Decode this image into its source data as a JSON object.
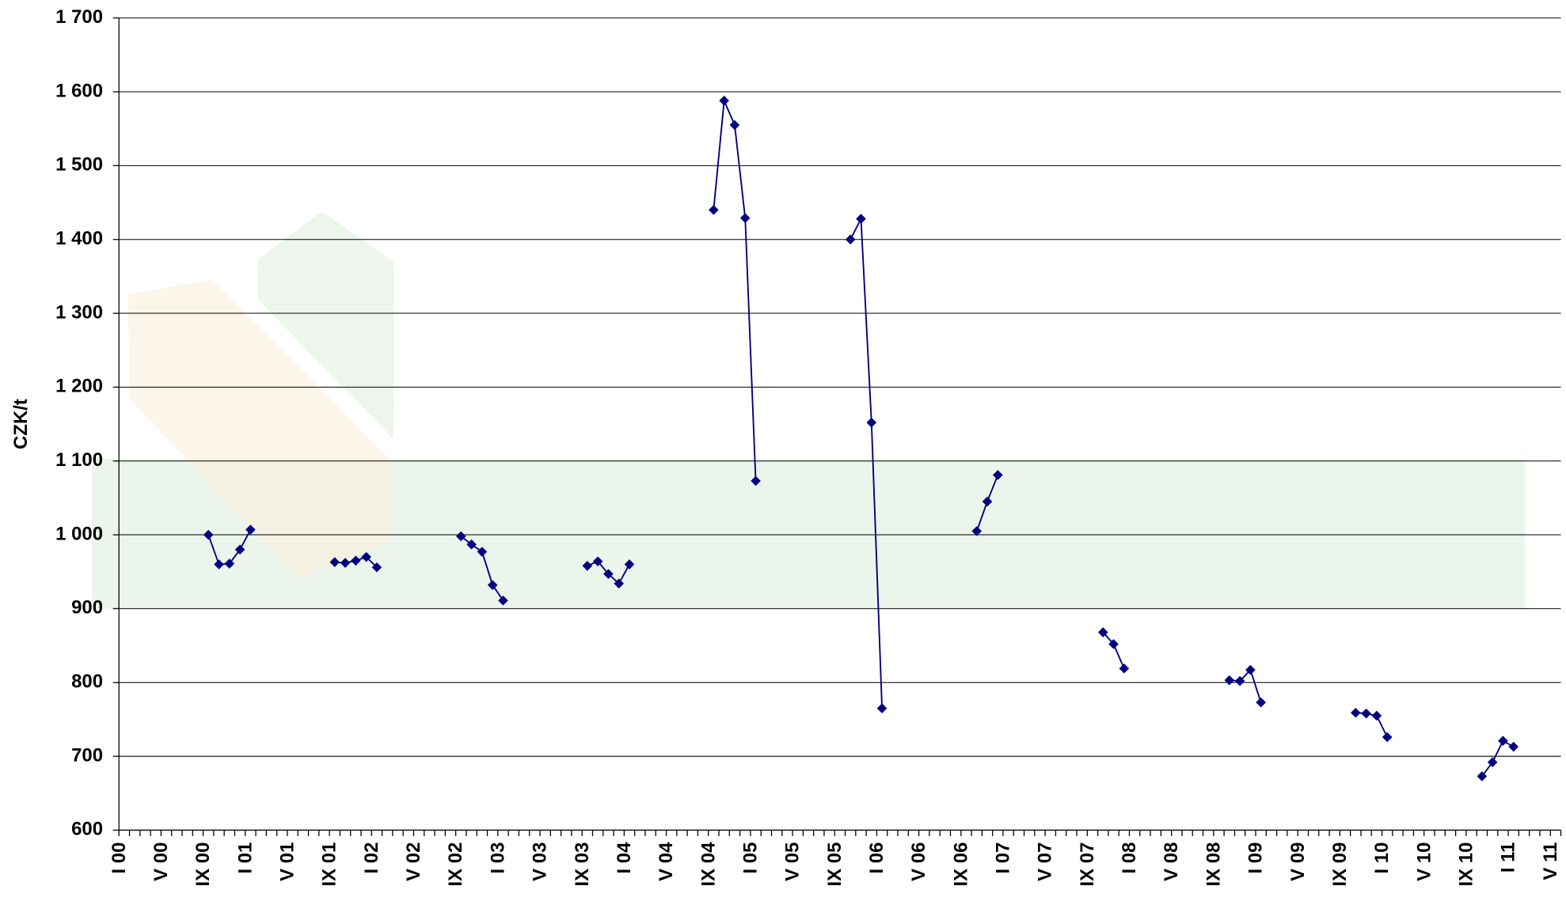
{
  "chart_data": {
    "type": "line",
    "y_label": "CZK/t",
    "categories": [
      "I 00",
      null,
      null,
      null,
      "V 00",
      null,
      null,
      null,
      "IX 00",
      null,
      null,
      null,
      "I 01",
      null,
      null,
      null,
      "V 01",
      null,
      null,
      null,
      "IX 01",
      null,
      null,
      null,
      "I 02",
      null,
      null,
      null,
      "V 02",
      null,
      null,
      null,
      "IX 02",
      null,
      null,
      null,
      "I 03",
      null,
      null,
      null,
      "V 03",
      null,
      null,
      null,
      "IX 03",
      null,
      null,
      null,
      "I 04",
      null,
      null,
      null,
      "V 04",
      null,
      null,
      null,
      "IX 04",
      null,
      null,
      null,
      "I 05",
      null,
      null,
      null,
      "V 05",
      null,
      null,
      null,
      "IX 05",
      null,
      null,
      null,
      "I 06",
      null,
      null,
      null,
      "V 06",
      null,
      null,
      null,
      "IX 06",
      null,
      null,
      null,
      "I 07",
      null,
      null,
      null,
      "V 07",
      null,
      null,
      null,
      "IX 07",
      null,
      null,
      null,
      "I 08",
      null,
      null,
      null,
      "V 08",
      null,
      null,
      null,
      "IX 08",
      null,
      null,
      null,
      "I 09",
      null,
      null,
      null,
      "V 09",
      null,
      null,
      null,
      "IX 09",
      null,
      null,
      null,
      "I 10",
      null,
      null,
      null,
      "V 10",
      null,
      null,
      null,
      "IX 10",
      null,
      null,
      null,
      "I 11",
      null,
      null,
      null,
      "V 11"
    ],
    "series": [
      {
        "color": "#000080",
        "values": [
          null,
          null,
          null,
          null,
          null,
          null,
          null,
          null,
          1000,
          960,
          961,
          980,
          1007,
          null,
          null,
          null,
          null,
          null,
          null,
          null,
          963,
          962,
          965,
          970,
          956,
          null,
          null,
          null,
          null,
          null,
          null,
          null,
          998,
          987,
          977,
          932,
          911,
          null,
          null,
          null,
          null,
          null,
          null,
          null,
          958,
          964,
          947,
          934,
          960,
          null,
          null,
          null,
          null,
          null,
          null,
          null,
          1440,
          1588,
          1555,
          1429,
          1073,
          null,
          null,
          null,
          null,
          null,
          null,
          null,
          null,
          1400,
          1428,
          1152,
          765,
          null,
          null,
          null,
          null,
          null,
          null,
          null,
          null,
          1005,
          1045,
          1081,
          null,
          null,
          null,
          null,
          null,
          null,
          null,
          null,
          null,
          868,
          852,
          819,
          null,
          null,
          null,
          null,
          null,
          null,
          null,
          null,
          null,
          803,
          802,
          817,
          773,
          null,
          null,
          null,
          null,
          null,
          null,
          null,
          null,
          759,
          758,
          755,
          726,
          null,
          null,
          null,
          null,
          null,
          null,
          null,
          null,
          673,
          692,
          721,
          713,
          null,
          null,
          null,
          null
        ]
      }
    ],
    "ylim": [
      600,
      1700
    ],
    "yticks": [
      600,
      700,
      800,
      900,
      {
        "value": 1000,
        "label": "1 000"
      },
      {
        "value": 1100,
        "label": "1 100"
      },
      {
        "value": 1200,
        "label": "1 200"
      },
      {
        "value": 1300,
        "label": "1 300"
      },
      {
        "value": 1400,
        "label": "1 400"
      },
      {
        "value": 1500,
        "label": "1 500"
      },
      {
        "value": 1600,
        "label": "1 600"
      },
      {
        "value": 1700,
        "label": "1 700"
      }
    ],
    "grid": true
  }
}
